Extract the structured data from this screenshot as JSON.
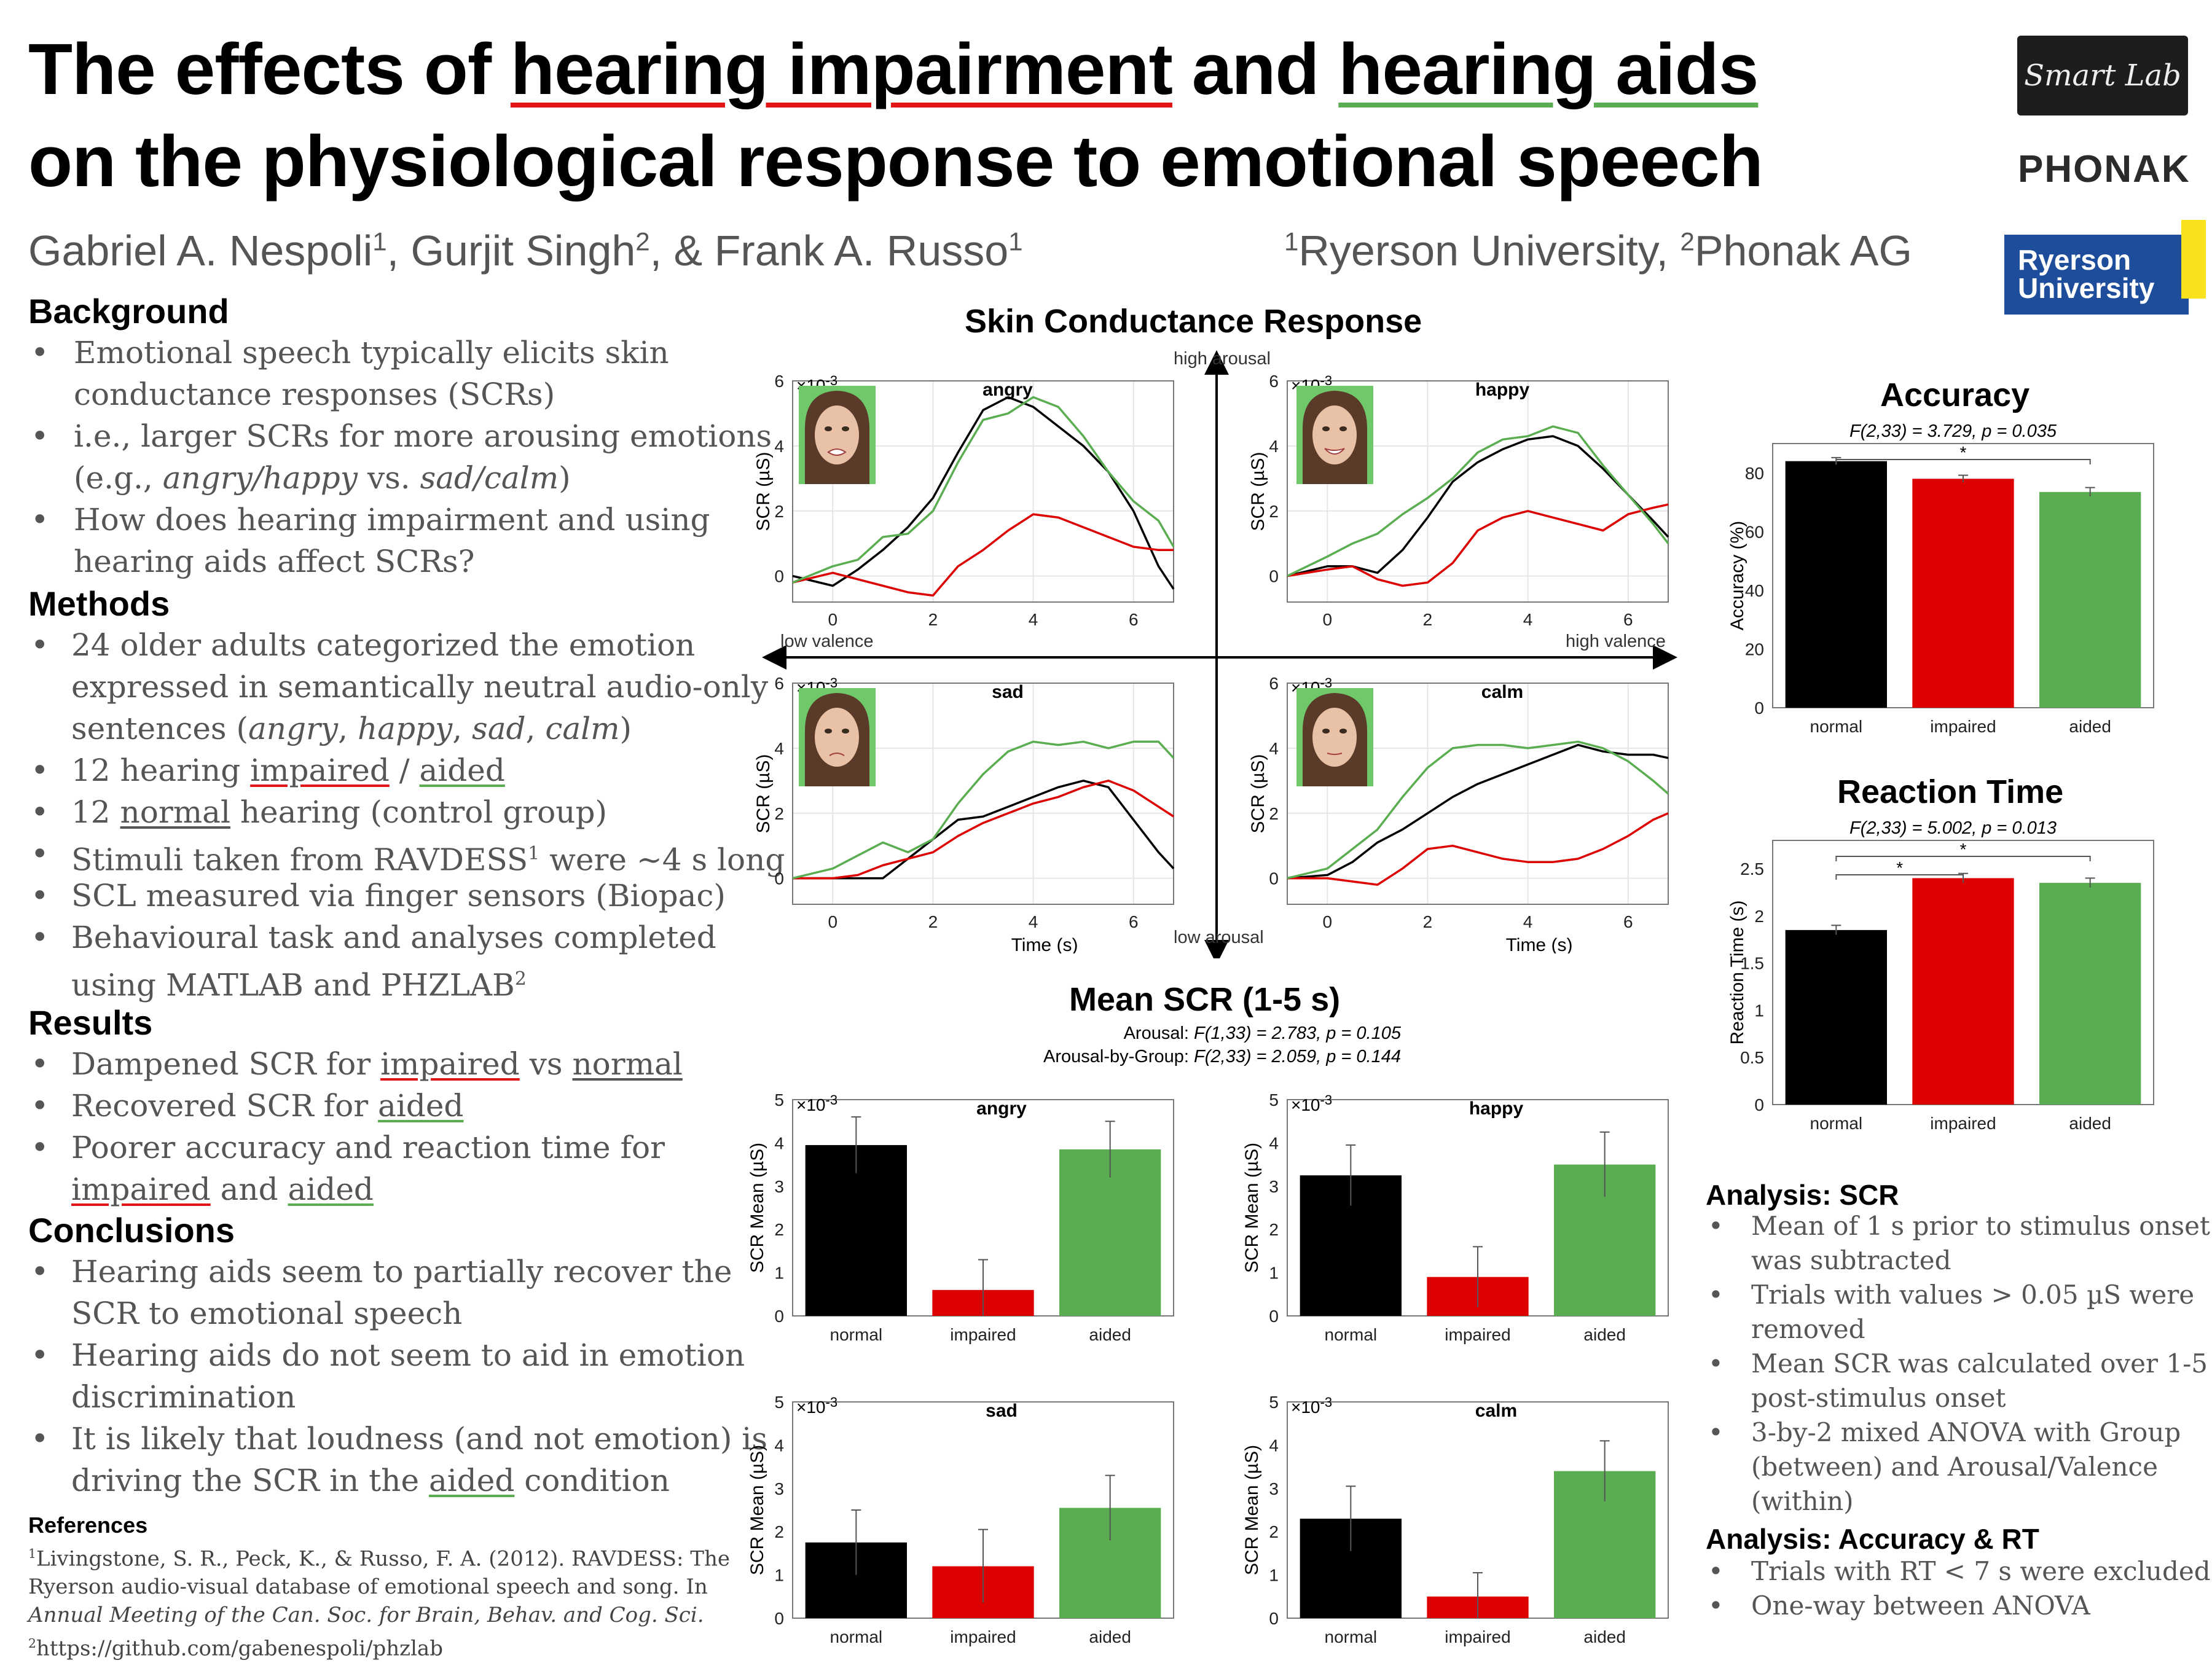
{
  "title": {
    "part1": "The effects of ",
    "hi": "hearing impairment",
    "part2": " and ",
    "ha": "hearing aids",
    "line2": "on the physiological response to emotional speech"
  },
  "authors": {
    "a1": "Gabriel A. Nespoli",
    "s1": "1",
    "a2": ", Gurjit Singh",
    "s2": "2",
    "a3": ", & Frank A. Russo",
    "s3": "1"
  },
  "affiliations": {
    "s1": "1",
    "u1": "Ryerson University, ",
    "s2": "2",
    "u2": "Phonak AG"
  },
  "logos": {
    "smartlab": "Smart Lab",
    "phonak": "PHONAK",
    "ryerson1": "Ryerson",
    "ryerson2": "University"
  },
  "background": {
    "heading": "Background",
    "b1a": "Emotional speech typically elicits skin",
    "b1b": "conductance responses (SCRs)",
    "b2a": "i.e., larger SCRs for more arousing emotions",
    "b2b_pre": "(e.g., ",
    "b2b_e1": "angry/happy",
    "b2b_mid": " vs. ",
    "b2b_e2": "sad/calm",
    "b2b_post": ")",
    "b3a": "How does hearing impairment and using",
    "b3b": "hearing aids affect SCRs?"
  },
  "methods": {
    "heading": "Methods",
    "m1a": "24 older adults categorized the emotion",
    "m1b": "expressed in semantically neutral audio-only",
    "m1c_pre": "sentences (",
    "e1": "angry",
    "c1": ", ",
    "e2": "happy",
    "c2": ", ",
    "e3": "sad",
    "c3": ", ",
    "e4": "calm",
    "m1c_post": ")",
    "m2_pre": "12 hearing ",
    "m2_imp": "impaired",
    "m2_mid": " / ",
    "m2_aid": "aided",
    "m3_pre": "12 ",
    "m3_norm": "normal",
    "m3_post": " hearing (control group)",
    "m4": "Stimuli taken from RAVDESS",
    "m4_sup": "1",
    "m4_post": " were ~4 s long",
    "m5": "SCL measured via finger sensors (Biopac)",
    "m6a": "Behavioural task and analyses completed",
    "m6b": "using MATLAB and PHZLAB",
    "m6_sup": "2"
  },
  "results": {
    "heading": "Results",
    "r1_pre": "Dampened SCR for ",
    "r1_imp": "impaired",
    "r1_mid": " vs ",
    "r1_norm": "normal",
    "r2_pre": "Recovered SCR for ",
    "r2_aid": "aided",
    "r3a": "Poorer accuracy and reaction time for",
    "r3b_imp": "impaired",
    "r3b_mid": " and ",
    "r3b_aid": "aided"
  },
  "conclusions": {
    "heading": "Conclusions",
    "c1a": "Hearing aids seem to partially recover the",
    "c1b": "SCR to emotional speech",
    "c2a": "Hearing aids do not seem to aid in emotion",
    "c2b": "discrimination",
    "c3a": "It is likely that loudness (and not emotion) is",
    "c3b_pre": "driving the SCR in the ",
    "c3b_aid": "aided",
    "c3b_post": " condition"
  },
  "references": {
    "heading": "References",
    "r1_sup": "1",
    "r1a": "Livingstone, S. R., Peck, K., & Russo, F. A. (2012). RAVDESS: The",
    "r1b": "Ryerson audio-visual database of emotional speech and song. In",
    "r1c": "Annual Meeting of the Can. Soc. for Brain, Behav. and Cog. Sci.",
    "r2_sup": "2",
    "r2": "https://github.com/gabenespoli/phzlab"
  },
  "analysis_scr": {
    "heading": "Analysis: SCR",
    "a1a": "Mean of 1 s prior to stimulus onset",
    "a1b": "was subtracted",
    "a2a": "Trials with values > 0.05 µS were",
    "a2b": "removed",
    "a3a": "Mean SCR was calculated over 1-5 s",
    "a3b": "post-stimulus onset",
    "a4a": "3-by-2 mixed ANOVA with Group",
    "a4b": "(between) and Arousal/Valence",
    "a4c": "(within)"
  },
  "analysis_acc": {
    "heading": "Analysis: Accuracy & RT",
    "a1": "Trials with RT < 7 s were excluded",
    "a2": "One-way between ANOVA"
  },
  "colors": {
    "normal": "#000000",
    "impaired": "#dd0000",
    "aided": "#5aad50",
    "grid": "#e6e6e6"
  },
  "scr_panel": {
    "title": "Skin Conductance Response",
    "high_arousal": "high arousal",
    "low_arousal": "low arousal",
    "low_valence": "low valence",
    "high_valence": "high valence",
    "ylabel": "SCR  (µS)",
    "xlabel": "Time (s)",
    "scale": "×10",
    "scale_exp": "-3"
  },
  "mean_panel": {
    "title": "Mean SCR (1-5 s)",
    "stat1_pre": "Arousal: ",
    "stat1": "F(1,33) = 2.783, p = 0.105",
    "stat2_pre": "Arousal-by-Group: ",
    "stat2": "F(2,33) = 2.059, p = 0.144",
    "ylabel": "SCR Mean (µS)",
    "scale": "×10",
    "scale_exp": "-3"
  },
  "accuracy": {
    "title": "Accuracy",
    "stat": "F(2,33) = 3.729, p = 0.035",
    "sig": "*",
    "ylabel": "Accuracy (%)"
  },
  "reaction": {
    "title": "Reaction Time",
    "stat": "F(2,33) = 5.002, p = 0.013",
    "sig1": "*",
    "sig2": "*",
    "ylabel": "Reaction Time (s)"
  },
  "chart_data": [
    {
      "type": "line",
      "id": "scr-angry",
      "title": "angry",
      "ylabel": "SCR  (µS)",
      "xlim": [
        -0.8,
        6.8
      ],
      "ylim": [
        -0.8,
        6
      ],
      "xticks": [
        0,
        2,
        4,
        6
      ],
      "yticks": [
        0,
        2,
        4,
        6
      ],
      "x": [
        -0.8,
        0,
        0.5,
        1,
        1.5,
        2,
        2.5,
        3,
        3.5,
        4,
        4.5,
        5,
        5.5,
        6,
        6.5,
        6.8
      ],
      "series": [
        {
          "key": "normal",
          "values": [
            0,
            -0.3,
            0.2,
            0.8,
            1.5,
            2.4,
            3.8,
            5.1,
            5.5,
            5.2,
            4.6,
            4.0,
            3.2,
            2.0,
            0.3,
            -0.4
          ]
        },
        {
          "key": "impaired",
          "values": [
            -0.2,
            0.1,
            -0.1,
            -0.3,
            -0.5,
            -0.6,
            0.3,
            0.8,
            1.4,
            1.9,
            1.8,
            1.5,
            1.2,
            0.9,
            0.8,
            0.8
          ]
        },
        {
          "key": "aided",
          "values": [
            -0.2,
            0.3,
            0.5,
            1.2,
            1.3,
            2.0,
            3.5,
            4.8,
            5.0,
            5.5,
            5.2,
            4.3,
            3.2,
            2.3,
            1.7,
            0.9
          ]
        }
      ]
    },
    {
      "type": "line",
      "id": "scr-happy",
      "title": "happy",
      "ylabel": "SCR  (µS)",
      "xlim": [
        -0.8,
        6.8
      ],
      "ylim": [
        -0.8,
        6
      ],
      "xticks": [
        0,
        2,
        4,
        6
      ],
      "yticks": [
        0,
        2,
        4,
        6
      ],
      "x": [
        -0.8,
        0,
        0.5,
        1,
        1.5,
        2,
        2.5,
        3,
        3.5,
        4,
        4.5,
        5,
        5.5,
        6,
        6.5,
        6.8
      ],
      "series": [
        {
          "key": "normal",
          "values": [
            0,
            0.3,
            0.3,
            0.1,
            0.8,
            1.8,
            2.9,
            3.5,
            3.9,
            4.2,
            4.3,
            4.0,
            3.3,
            2.5,
            1.7,
            1.2
          ]
        },
        {
          "key": "impaired",
          "values": [
            0,
            0.2,
            0.3,
            -0.1,
            -0.3,
            -0.2,
            0.4,
            1.4,
            1.8,
            2.0,
            1.8,
            1.6,
            1.4,
            1.9,
            2.1,
            2.2
          ]
        },
        {
          "key": "aided",
          "values": [
            0,
            0.6,
            1.0,
            1.3,
            1.9,
            2.4,
            3.0,
            3.8,
            4.2,
            4.3,
            4.6,
            4.4,
            3.4,
            2.5,
            1.6,
            1.0
          ]
        }
      ]
    },
    {
      "type": "line",
      "id": "scr-sad",
      "title": "sad",
      "ylabel": "SCR  (µS)",
      "xlim": [
        -0.8,
        6.8
      ],
      "ylim": [
        -0.8,
        6
      ],
      "xticks": [
        0,
        2,
        4,
        6
      ],
      "yticks": [
        0,
        2,
        4,
        6
      ],
      "x": [
        -0.8,
        0,
        0.5,
        1,
        1.5,
        2,
        2.5,
        3,
        3.5,
        4,
        4.5,
        5,
        5.5,
        6,
        6.5,
        6.8
      ],
      "series": [
        {
          "key": "normal",
          "values": [
            0,
            0,
            0,
            0,
            0.6,
            1.2,
            1.8,
            1.9,
            2.2,
            2.5,
            2.8,
            3.0,
            2.8,
            1.8,
            0.8,
            0.3
          ]
        },
        {
          "key": "impaired",
          "values": [
            0,
            0,
            0.1,
            0.4,
            0.6,
            0.8,
            1.3,
            1.7,
            2.0,
            2.3,
            2.5,
            2.8,
            3.0,
            2.7,
            2.2,
            1.9
          ]
        },
        {
          "key": "aided",
          "values": [
            0,
            0.3,
            0.7,
            1.1,
            0.8,
            1.2,
            2.3,
            3.2,
            3.9,
            4.2,
            4.1,
            4.2,
            4.0,
            4.2,
            4.2,
            3.7
          ]
        }
      ]
    },
    {
      "type": "line",
      "id": "scr-calm",
      "title": "calm",
      "ylabel": "SCR  (µS)",
      "xlim": [
        -0.8,
        6.8
      ],
      "ylim": [
        -0.8,
        6
      ],
      "xticks": [
        0,
        2,
        4,
        6
      ],
      "yticks": [
        0,
        2,
        4,
        6
      ],
      "x": [
        -0.8,
        0,
        0.5,
        1,
        1.5,
        2,
        2.5,
        3,
        3.5,
        4,
        4.5,
        5,
        5.5,
        6,
        6.5,
        6.8
      ],
      "series": [
        {
          "key": "normal",
          "values": [
            0,
            0.1,
            0.5,
            1.1,
            1.5,
            2.0,
            2.5,
            2.9,
            3.2,
            3.5,
            3.8,
            4.1,
            3.9,
            3.8,
            3.8,
            3.7
          ]
        },
        {
          "key": "impaired",
          "values": [
            0,
            0,
            -0.1,
            -0.2,
            0.3,
            0.9,
            1.0,
            0.8,
            0.6,
            0.5,
            0.5,
            0.6,
            0.9,
            1.3,
            1.8,
            2.0
          ]
        },
        {
          "key": "aided",
          "values": [
            0,
            0.3,
            0.9,
            1.5,
            2.5,
            3.4,
            4.0,
            4.1,
            4.1,
            4.0,
            4.1,
            4.2,
            4.0,
            3.6,
            3.0,
            2.6
          ]
        }
      ]
    },
    {
      "type": "bar",
      "id": "mean-angry",
      "title": "angry",
      "categories": [
        "normal",
        "impaired",
        "aided"
      ],
      "values": [
        3.95,
        0.6,
        3.85
      ],
      "errors": [
        0.65,
        0.7,
        0.65
      ],
      "ylim": [
        0,
        5
      ],
      "yticks": [
        0,
        1,
        2,
        3,
        4,
        5
      ]
    },
    {
      "type": "bar",
      "id": "mean-happy",
      "title": "happy",
      "categories": [
        "normal",
        "impaired",
        "aided"
      ],
      "values": [
        3.25,
        0.9,
        3.5
      ],
      "errors": [
        0.7,
        0.7,
        0.75
      ],
      "ylim": [
        0,
        5
      ],
      "yticks": [
        0,
        1,
        2,
        3,
        4,
        5
      ]
    },
    {
      "type": "bar",
      "id": "mean-sad",
      "title": "sad",
      "categories": [
        "normal",
        "impaired",
        "aided"
      ],
      "values": [
        1.75,
        1.2,
        2.55
      ],
      "errors": [
        0.75,
        0.85,
        0.75
      ],
      "ylim": [
        0,
        5
      ],
      "yticks": [
        0,
        1,
        2,
        3,
        4,
        5
      ]
    },
    {
      "type": "bar",
      "id": "mean-calm",
      "title": "calm",
      "categories": [
        "normal",
        "impaired",
        "aided"
      ],
      "values": [
        2.3,
        0.5,
        3.4
      ],
      "errors": [
        0.75,
        0.55,
        0.7
      ],
      "ylim": [
        0,
        5
      ],
      "yticks": [
        0,
        1,
        2,
        3,
        4,
        5
      ]
    },
    {
      "type": "bar",
      "id": "accuracy",
      "title": "",
      "ylabel": "Accuracy (%)",
      "categories": [
        "normal",
        "impaired",
        "aided"
      ],
      "values": [
        84,
        78,
        73.5
      ],
      "errors": [
        1.2,
        1.2,
        1.5
      ],
      "ylim": [
        0,
        90
      ],
      "yticks": [
        0,
        20,
        40,
        60,
        80
      ]
    },
    {
      "type": "bar",
      "id": "reaction",
      "title": "",
      "ylabel": "Reaction Time (s)",
      "categories": [
        "normal",
        "impaired",
        "aided"
      ],
      "values": [
        1.85,
        2.4,
        2.35
      ],
      "errors": [
        0.05,
        0.05,
        0.05
      ],
      "ylim": [
        0,
        2.8
      ],
      "yticks": [
        0,
        0.5,
        1,
        1.5,
        2,
        2.5
      ]
    }
  ]
}
